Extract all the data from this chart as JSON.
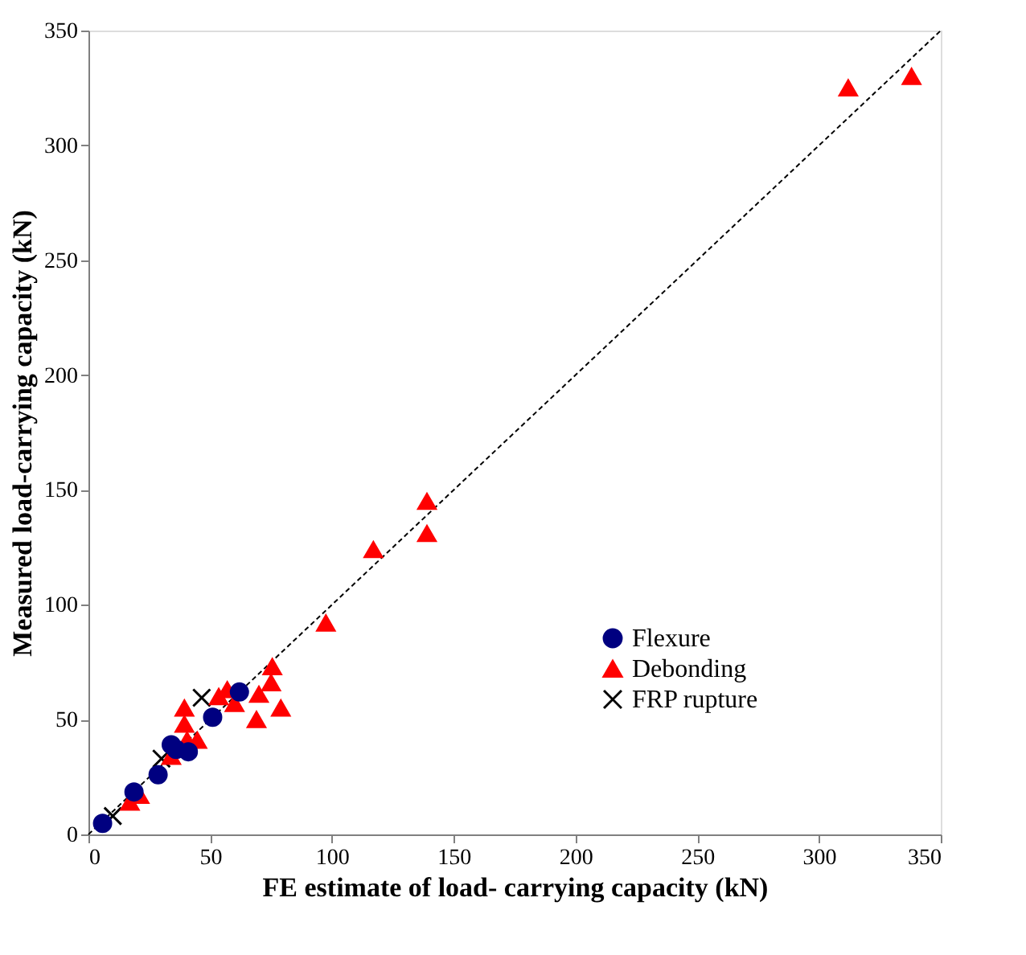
{
  "chart_data": {
    "type": "scatter",
    "xlabel": "FE estimate of load- carrying capacity (kN)",
    "ylabel": "Measured load-carrying capacity (kN)",
    "xlim": [
      0,
      350
    ],
    "ylim": [
      0,
      350
    ],
    "xticks": [
      0,
      50,
      100,
      150,
      200,
      250,
      300,
      350
    ],
    "yticks": [
      0,
      50,
      100,
      150,
      200,
      250,
      300,
      350
    ],
    "grid": false,
    "legend": "bottom right",
    "series": [
      {
        "type": "line",
        "line_style": "dashed",
        "marker": "none",
        "color": "#000000",
        "x": [
          0,
          350
        ],
        "values": [
          0,
          350
        ]
      },
      {
        "name": "Flexure",
        "marker": "circle",
        "color": "#000080",
        "x": [
          5.8,
          18.7,
          28.6,
          34,
          41,
          36,
          51,
          62
        ],
        "values": [
          4.8,
          18.5,
          26,
          39,
          36,
          37,
          51,
          62
        ]
      },
      {
        "name": "Debonding",
        "marker": "triangle",
        "color": "#ff0000",
        "x": [
          17,
          21,
          34,
          40.5,
          44.7,
          39.4,
          39.4,
          53.5,
          57,
          60,
          69,
          70,
          75,
          75.5,
          79,
          97.5,
          117,
          139,
          139,
          312,
          338
        ],
        "values": [
          14,
          17,
          34,
          41,
          41,
          48,
          55,
          60,
          63,
          57,
          50,
          61,
          66,
          73,
          55,
          92,
          124,
          145,
          131,
          325,
          330
        ]
      },
      {
        "name": "FRP rupture",
        "marker": "cross",
        "color": "#000000",
        "x": [
          10,
          30,
          46.5
        ],
        "values": [
          8,
          33,
          59.5
        ]
      }
    ]
  }
}
